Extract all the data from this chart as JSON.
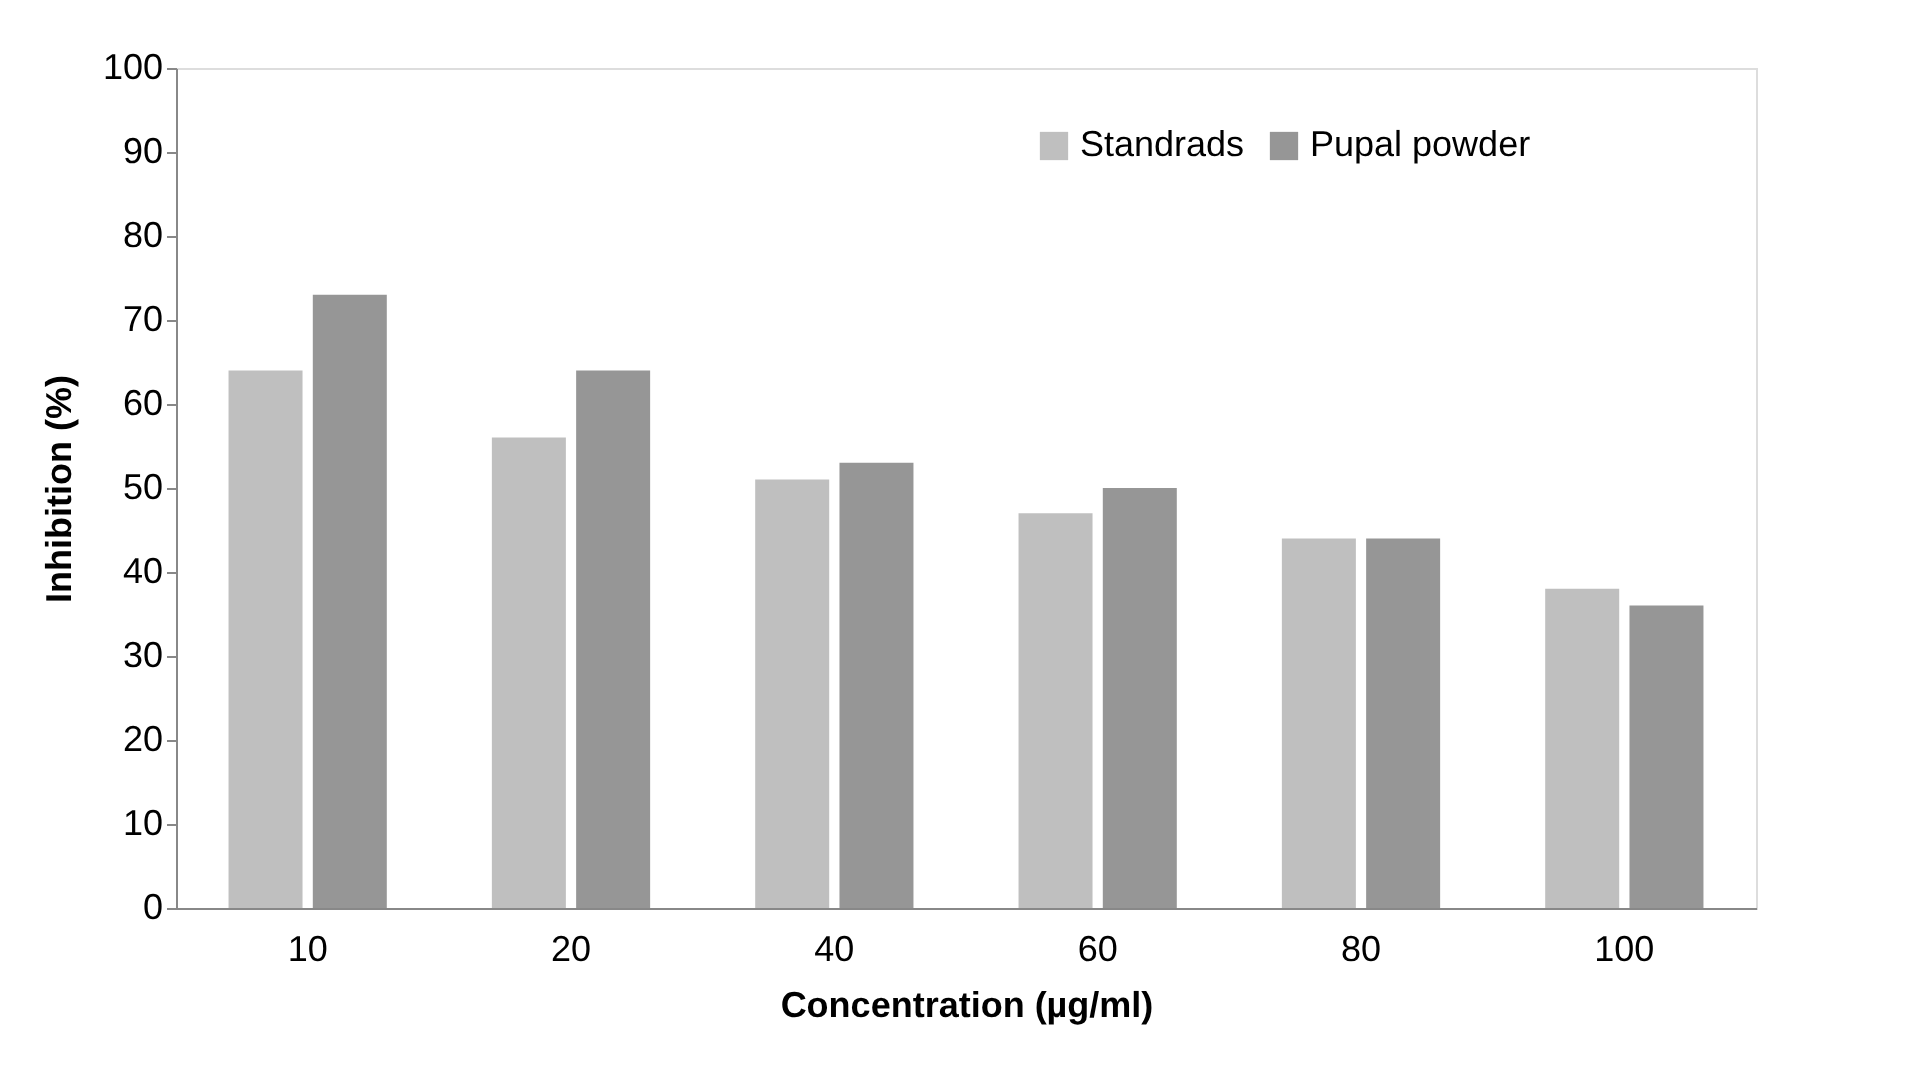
{
  "chart_data": {
    "type": "bar",
    "xlabel": "Concentration (µg/ml)",
    "ylabel": "Inhibition (%)",
    "categories": [
      "10",
      "20",
      "40",
      "60",
      "80",
      "100"
    ],
    "series": [
      {
        "name": "Standrads",
        "color": "#bfbfbf",
        "values": [
          64,
          56,
          51,
          47,
          44,
          38
        ]
      },
      {
        "name": "Pupal powder",
        "color": "#969696",
        "values": [
          73,
          64,
          53,
          50,
          44,
          36
        ]
      }
    ],
    "ylim": [
      0,
      100
    ],
    "yticks": [
      0,
      10,
      20,
      30,
      40,
      50,
      60,
      70,
      80,
      90,
      100
    ],
    "legend": "top right"
  }
}
